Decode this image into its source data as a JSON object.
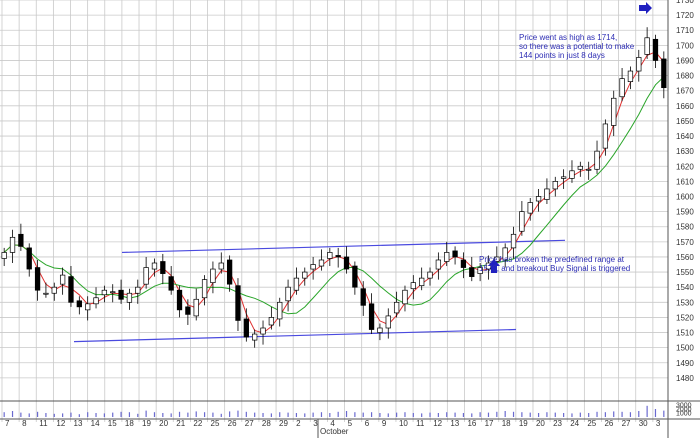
{
  "chart_data": {
    "type": "candlestick",
    "title": "",
    "xlabel": "",
    "ylabel": "",
    "ylim": [
      1470,
      1730
    ],
    "y_ticks": [
      1480,
      1490,
      1500,
      1510,
      1520,
      1530,
      1540,
      1550,
      1560,
      1570,
      1580,
      1590,
      1600,
      1610,
      1620,
      1630,
      1640,
      1650,
      1660,
      1670,
      1680,
      1690,
      1700,
      1710,
      1720,
      1730
    ],
    "x_tick_labels": [
      "7",
      "8",
      "11",
      "12",
      "13",
      "14",
      "15",
      "18",
      "19",
      "20",
      "21",
      "22",
      "25",
      "26",
      "27",
      "28",
      "29",
      "2",
      "3",
      "4",
      "5",
      "6",
      "9",
      "10",
      "11",
      "12",
      "13",
      "16",
      "17",
      "18",
      "19",
      "20",
      "23",
      "24",
      "25",
      "26",
      "27",
      "30",
      "3"
    ],
    "month_label": "October",
    "grid": true,
    "colors": {
      "up_candle": "#ffffff",
      "down_candle": "#000000",
      "short_ma": "#e03030",
      "long_ma": "#2aa52a",
      "channel": "#4a4adf",
      "annotation": "#2d2db4",
      "volume": "#6a6acf"
    },
    "series": [
      {
        "kind": "price",
        "close": [
          1563,
          1573,
          1567,
          1552,
          1538,
          1536,
          1540,
          1548,
          1530,
          1527,
          1529,
          1533,
          1538,
          1537,
          1532,
          1536,
          1540,
          1553,
          1556,
          1549,
          1538,
          1525,
          1522,
          1532,
          1545,
          1552,
          1556,
          1542,
          1518,
          1507,
          1509,
          1513,
          1520,
          1530,
          1540,
          1546,
          1550,
          1555,
          1558,
          1563,
          1560,
          1552,
          1540,
          1528,
          1512,
          1513,
          1521,
          1530,
          1538,
          1543,
          1546,
          1550,
          1558,
          1563,
          1560,
          1553,
          1547,
          1553,
          1556,
          1560,
          1566,
          1575,
          1590,
          1596,
          1600,
          1605,
          1610,
          1613,
          1617,
          1620,
          1618,
          1630,
          1648,
          1665,
          1678,
          1683,
          1692,
          1705,
          1690,
          1672
        ]
      },
      {
        "kind": "volume",
        "values": [
          1200,
          1500,
          1100,
          900,
          1300,
          1000,
          800,
          900,
          1100,
          700,
          1200,
          1000,
          900,
          1100,
          1300,
          1200,
          800,
          1600,
          1200,
          1000,
          900,
          1300,
          1100,
          1400,
          1200,
          1100,
          800,
          1400,
          1600,
          1300,
          1100,
          1000,
          900,
          1200,
          1100,
          1000,
          900,
          1100,
          1200,
          1000,
          1300,
          1500,
          1200,
          1100,
          1200,
          1000,
          900,
          1100,
          1200,
          1000,
          900,
          1100,
          1000,
          1200,
          1100,
          1000,
          900,
          1200,
          1100,
          1300,
          1500,
          1300,
          1200,
          1100,
          1000,
          1200,
          1100,
          1000,
          900,
          1100,
          1000,
          1300,
          1200,
          1400,
          1300,
          1200,
          1500,
          2800,
          2000,
          1600
        ]
      }
    ],
    "volume_ticks": [
      1000,
      2000,
      3000
    ],
    "annotations": [
      {
        "id": "peak",
        "text": [
          "Price went as high as 1714,",
          "so there was a potential to make",
          "144 points in just 8 days"
        ]
      },
      {
        "id": "breakout",
        "text": [
          "Price has broken the predefined range at",
          "1570, and breakout Buy Signal is triggered"
        ]
      }
    ]
  }
}
